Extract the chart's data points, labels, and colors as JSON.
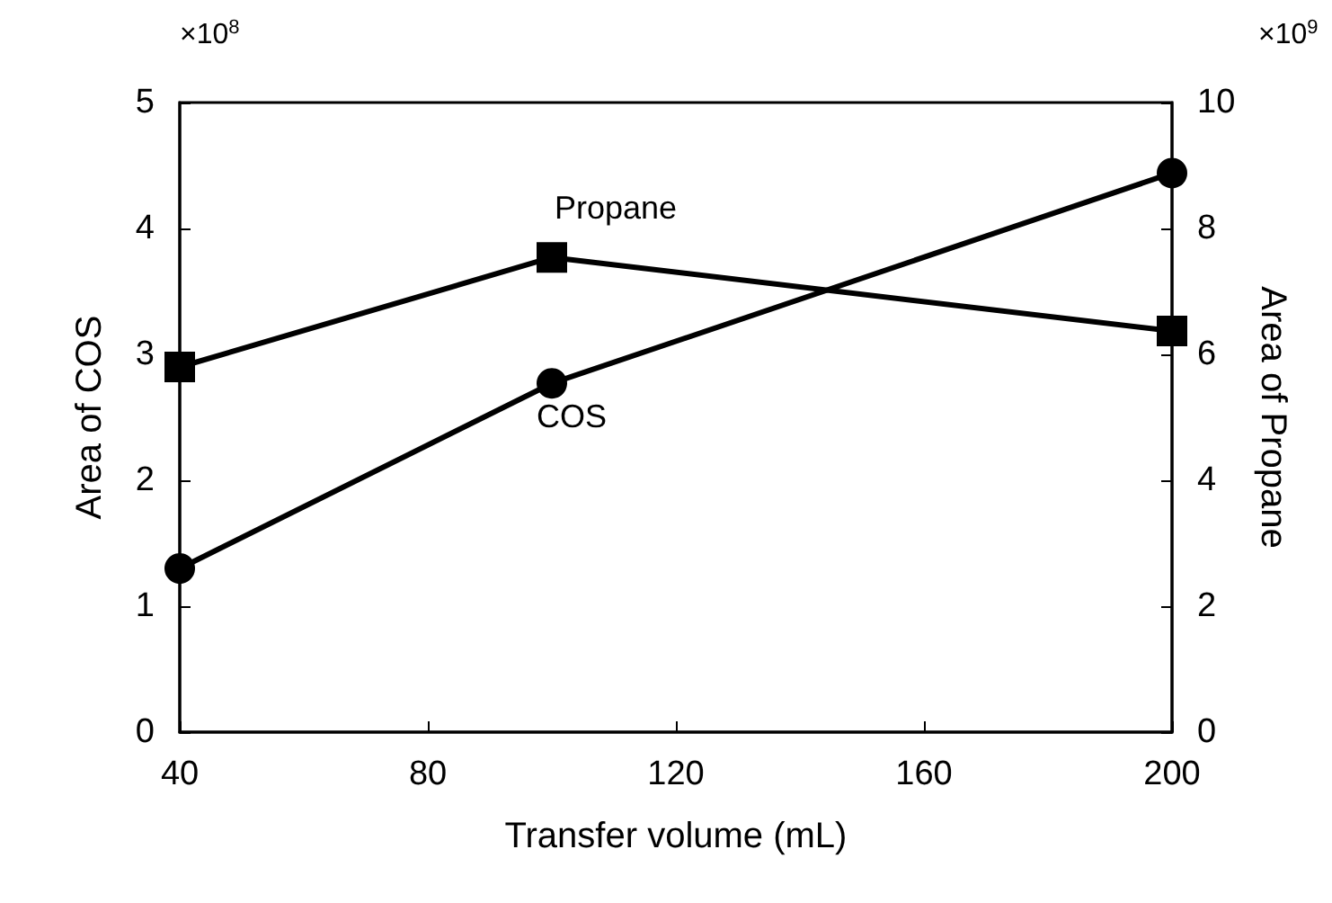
{
  "chart_data": {
    "type": "line",
    "xlabel": "Transfer volume (mL)",
    "ylabel": "Area of COS",
    "y2label": "Area of Propane",
    "x": [
      40,
      100,
      200
    ],
    "series": [
      {
        "name": "COS",
        "color": "#000000",
        "marker": "circle",
        "values": [
          1.3,
          2.77,
          4.44
        ]
      },
      {
        "name": "Propane",
        "color": "#000000",
        "marker": "square",
        "axis": "y2",
        "values": [
          5.8,
          7.54,
          6.37
        ]
      }
    ],
    "xlim": [
      40,
      200
    ],
    "xticks": [
      40,
      80,
      120,
      160,
      200
    ],
    "ylim": [
      0,
      5
    ],
    "yticks": [
      0,
      1,
      2,
      3,
      4,
      5
    ],
    "y2lim": [
      0,
      10
    ],
    "y2ticks": [
      0,
      2,
      4,
      6,
      8,
      10
    ],
    "annotations": [
      "×10$^{8}$",
      "×10$^{9}$"
    ],
    "grid": false,
    "legend": false,
    "line_style": "solid"
  }
}
